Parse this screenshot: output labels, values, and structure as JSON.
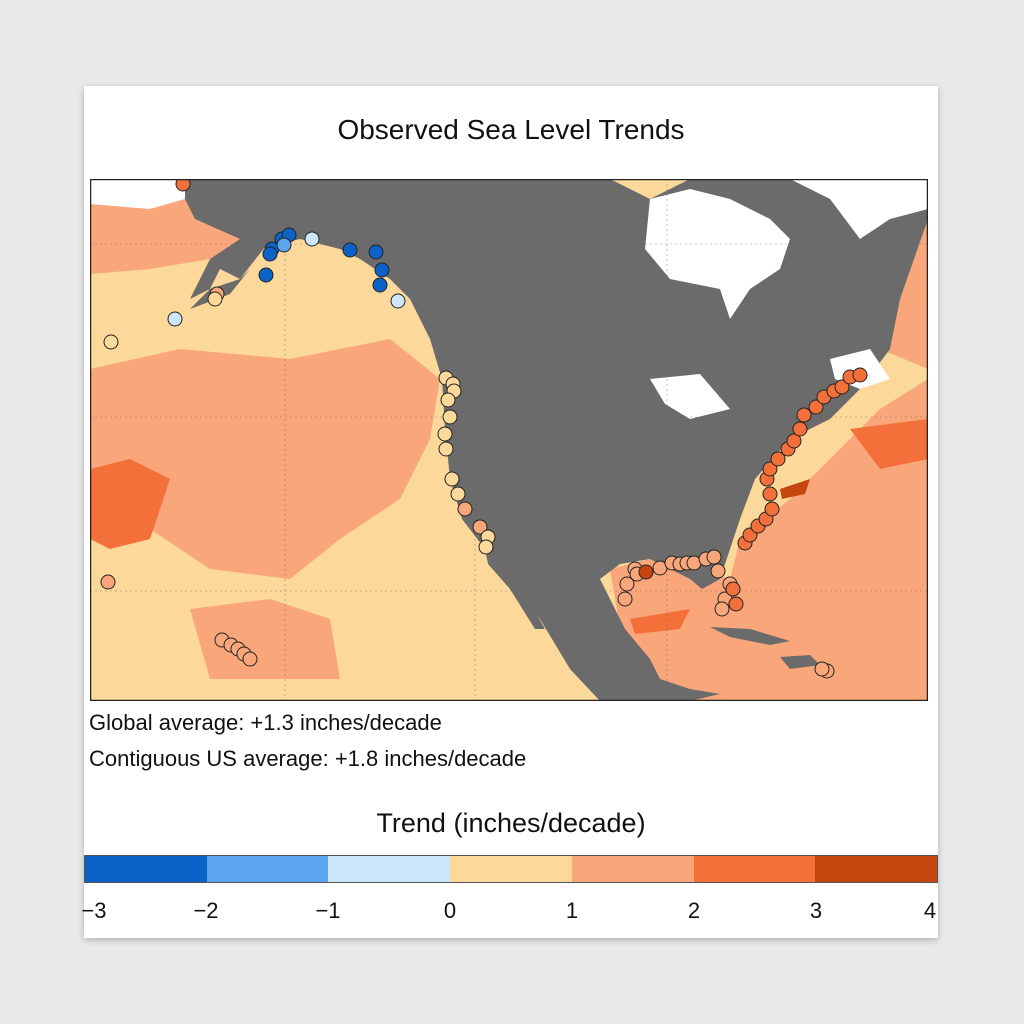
{
  "title": "Observed Sea Level Trends",
  "notes": {
    "global": "Global average: +1.3 inches/decade",
    "us": "Contiguous US average: +1.8 inches/decade"
  },
  "legend": {
    "title": "Trend (inches/decade)",
    "colors": [
      "#0b63c7",
      "#5ba4ee",
      "#cde6fb",
      "#fcd99a",
      "#f9a77a",
      "#f3703a",
      "#c4450e"
    ],
    "ticks": [
      "−3",
      "−2",
      "−1",
      "0",
      "1",
      "2",
      "3",
      "4"
    ]
  },
  "map_colors": {
    "land": "#6b6b6b",
    "ice": "#ffffff",
    "ocean_0_1": "#fcd99a",
    "ocean_1_2": "#f9a77a",
    "ocean_2_3": "#f3703a",
    "ocean_3_4": "#c4450e"
  }
}
